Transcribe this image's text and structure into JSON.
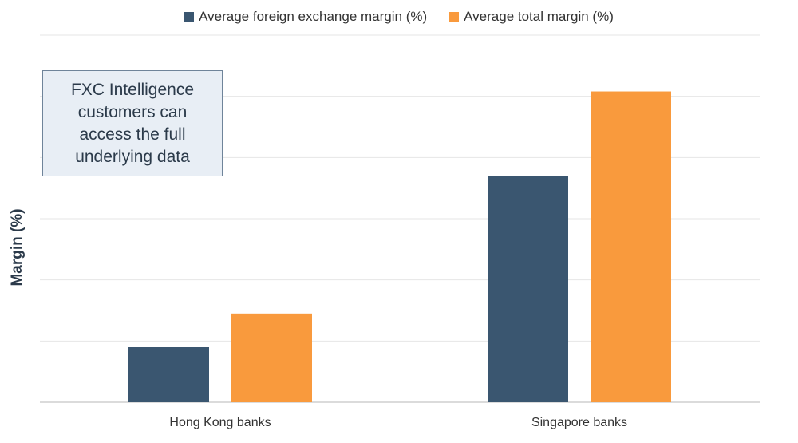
{
  "chart_data": {
    "type": "bar",
    "categories": [
      "Hong Kong banks",
      "Singapore banks"
    ],
    "series": [
      {
        "name": "Average foreign exchange margin (%)",
        "color": "#3a5670",
        "values": [
          0.9,
          3.7
        ]
      },
      {
        "name": "Average total margin (%)",
        "color": "#f99a3d",
        "values": [
          1.45,
          5.08
        ]
      }
    ],
    "title": "",
    "xlabel": "",
    "ylabel": "Margin (%)",
    "ylim": [
      0,
      6
    ],
    "grid": true,
    "legend": "top-center"
  },
  "annotation": {
    "text": "FXC Intelligence customers can access the full underlying data"
  }
}
